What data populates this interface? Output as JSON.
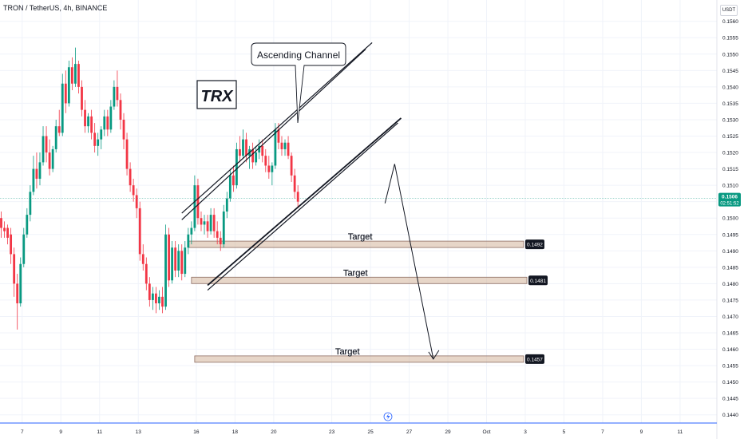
{
  "header": {
    "symbol_line": "TRON / TetherUS, 4h, BINANCE",
    "currency_button": "USDT"
  },
  "annotations": {
    "ticker_label": "TRX",
    "channel_callout": "Ascending Channel",
    "target_label": "Target"
  },
  "colors": {
    "up": "#089981",
    "down": "#f23645",
    "zone_fill": "#d4b49a",
    "zone_border": "#8d6e63",
    "axis_text": "#131722",
    "grid": "#f0f3fa",
    "current_price_line": "#089981",
    "time_axis_line": "#2962ff"
  },
  "chart_data": {
    "type": "candlestick",
    "symbol": "TRON / TetherUS",
    "timeframe": "4h",
    "exchange": "BINANCE",
    "currency": "USDT",
    "ylim": [
      0.14375,
      0.15665
    ],
    "y_ticks": [
      "0.1440",
      "0.1445",
      "0.1450",
      "0.1455",
      "0.1460",
      "0.1465",
      "0.1470",
      "0.1475",
      "0.1480",
      "0.1485",
      "0.1490",
      "0.1495",
      "0.1500",
      "0.1505",
      "0.1510",
      "0.1515",
      "0.1520",
      "0.1525",
      "0.1530",
      "0.1535",
      "0.1540",
      "0.1545",
      "0.1550",
      "0.1555",
      "0.1560"
    ],
    "x_ticks": [
      "7",
      "9",
      "11",
      "13",
      "16",
      "18",
      "20",
      "23",
      "25",
      "27",
      "29",
      "Oct",
      "3",
      "5",
      "7",
      "9",
      "11"
    ],
    "x_tick_bar_index": [
      6.5,
      18.5,
      30.5,
      42.5,
      60.5,
      72.5,
      84.5,
      102.5,
      114.5,
      126.5,
      138.5,
      150.5,
      162.5,
      174.5,
      186.5,
      198.5,
      210.5
    ],
    "current_price": {
      "value": 0.1506,
      "label": "0.1506",
      "countdown": "02:51:52"
    },
    "targets": [
      {
        "label": "Target",
        "value": 0.1492,
        "price_label": "0.1492",
        "bar_from": 58,
        "bar_to": 162
      },
      {
        "label": "Target",
        "value": 0.1481,
        "price_label": "0.1481",
        "bar_from": 59,
        "bar_to": 163
      },
      {
        "label": "Target",
        "value": 0.1457,
        "price_label": "0.1457",
        "bar_from": 60,
        "bar_to": 162
      }
    ],
    "channel": {
      "upper_outer": [
        [
          56,
          0.15015
        ],
        [
          115,
          0.15535
        ]
      ],
      "upper_inner": [
        [
          56,
          0.14995
        ],
        [
          113,
          0.15515
        ]
      ],
      "lower_outer": [
        [
          64,
          0.14795
        ],
        [
          124,
          0.15305
        ]
      ],
      "lower_inner": [
        [
          64,
          0.1478
        ],
        [
          123,
          0.1529
        ]
      ]
    },
    "projection": [
      [
        119,
        0.15045
      ],
      [
        122,
        0.15165
      ],
      [
        134,
        0.1457
      ],
      [
        135,
        0.1459
      ]
    ],
    "candles": [
      [
        0.15,
        0.1502,
        0.1494,
        0.1497
      ],
      [
        0.1497,
        0.1499,
        0.1494,
        0.1496
      ],
      [
        0.1497,
        0.1498,
        0.1492,
        0.1494
      ],
      [
        0.1495,
        0.1497,
        0.1486,
        0.1489
      ],
      [
        0.1489,
        0.1491,
        0.1476,
        0.148
      ],
      [
        0.148,
        0.1483,
        0.1466,
        0.1474
      ],
      [
        0.1474,
        0.1488,
        0.1473,
        0.1486
      ],
      [
        0.1486,
        0.1497,
        0.1485,
        0.1495
      ],
      [
        0.1495,
        0.1503,
        0.1494,
        0.1501
      ],
      [
        0.1501,
        0.151,
        0.1499,
        0.1508
      ],
      [
        0.1508,
        0.1519,
        0.1507,
        0.1515
      ],
      [
        0.1515,
        0.152,
        0.1509,
        0.1512
      ],
      [
        0.1512,
        0.152,
        0.151,
        0.1517
      ],
      [
        0.1517,
        0.1528,
        0.1516,
        0.1525
      ],
      [
        0.1525,
        0.1528,
        0.1517,
        0.152
      ],
      [
        0.152,
        0.1524,
        0.1513,
        0.1515
      ],
      [
        0.1515,
        0.1522,
        0.1514,
        0.1521
      ],
      [
        0.1521,
        0.153,
        0.152,
        0.1528
      ],
      [
        0.1528,
        0.1533,
        0.1525,
        0.1526
      ],
      [
        0.1526,
        0.1544,
        0.1525,
        0.1541
      ],
      [
        0.1541,
        0.1545,
        0.1532,
        0.1535
      ],
      [
        0.1535,
        0.1548,
        0.1534,
        0.1546
      ],
      [
        0.1546,
        0.1549,
        0.1539,
        0.1541
      ],
      [
        0.1541,
        0.1552,
        0.154,
        0.1547
      ],
      [
        0.1547,
        0.1548,
        0.1538,
        0.154
      ],
      [
        0.154,
        0.1542,
        0.1531,
        0.1533
      ],
      [
        0.1533,
        0.1536,
        0.1526,
        0.1528
      ],
      [
        0.1528,
        0.1532,
        0.1526,
        0.1531
      ],
      [
        0.1531,
        0.1533,
        0.1524,
        0.1526
      ],
      [
        0.1526,
        0.1529,
        0.152,
        0.1522
      ],
      [
        0.1522,
        0.1526,
        0.1519,
        0.1524
      ],
      [
        0.1524,
        0.1528,
        0.1521,
        0.1527
      ],
      [
        0.1527,
        0.1533,
        0.1525,
        0.1531
      ],
      [
        0.1531,
        0.1533,
        0.1525,
        0.1527
      ],
      [
        0.1527,
        0.1536,
        0.1526,
        0.1534
      ],
      [
        0.1534,
        0.1542,
        0.1533,
        0.154
      ],
      [
        0.154,
        0.1545,
        0.1534,
        0.1536
      ],
      [
        0.1536,
        0.1538,
        0.1527,
        0.153
      ],
      [
        0.153,
        0.1532,
        0.1521,
        0.1524
      ],
      [
        0.1524,
        0.1526,
        0.1513,
        0.1515
      ],
      [
        0.1515,
        0.1517,
        0.1508,
        0.151
      ],
      [
        0.151,
        0.1512,
        0.1505,
        0.1507
      ],
      [
        0.1507,
        0.1509,
        0.15,
        0.1503
      ],
      [
        0.1503,
        0.1505,
        0.1487,
        0.1489
      ],
      [
        0.1489,
        0.1492,
        0.1484,
        0.1486
      ],
      [
        0.1486,
        0.1488,
        0.1478,
        0.148
      ],
      [
        0.148,
        0.1482,
        0.1473,
        0.1475
      ],
      [
        0.1475,
        0.1479,
        0.1472,
        0.1477
      ],
      [
        0.1477,
        0.1479,
        0.1471,
        0.1474
      ],
      [
        0.1474,
        0.1478,
        0.1472,
        0.1476
      ],
      [
        0.1476,
        0.1479,
        0.1471,
        0.1473
      ],
      [
        0.1473,
        0.1498,
        0.1472,
        0.1495
      ],
      [
        0.1495,
        0.1497,
        0.1479,
        0.1481
      ],
      [
        0.1481,
        0.1493,
        0.148,
        0.1491
      ],
      [
        0.1491,
        0.1493,
        0.1482,
        0.1484
      ],
      [
        0.1484,
        0.1492,
        0.1482,
        0.149
      ],
      [
        0.149,
        0.1492,
        0.1481,
        0.1483
      ],
      [
        0.1483,
        0.1493,
        0.1482,
        0.1491
      ],
      [
        0.1491,
        0.1497,
        0.1489,
        0.1495
      ],
      [
        0.1495,
        0.1499,
        0.1492,
        0.1497
      ],
      [
        0.1497,
        0.1513,
        0.1496,
        0.151
      ],
      [
        0.151,
        0.1512,
        0.1498,
        0.15
      ],
      [
        0.15,
        0.1502,
        0.1496,
        0.1498
      ],
      [
        0.1498,
        0.1501,
        0.1495,
        0.1499
      ],
      [
        0.1499,
        0.1501,
        0.1494,
        0.1496
      ],
      [
        0.1496,
        0.1503,
        0.1495,
        0.1501
      ],
      [
        0.1501,
        0.1503,
        0.1494,
        0.1496
      ],
      [
        0.1496,
        0.1499,
        0.1492,
        0.1494
      ],
      [
        0.1494,
        0.1496,
        0.149,
        0.1492
      ],
      [
        0.1492,
        0.1504,
        0.1491,
        0.1502
      ],
      [
        0.1502,
        0.1508,
        0.15,
        0.1506
      ],
      [
        0.1506,
        0.1515,
        0.1505,
        0.1513
      ],
      [
        0.1513,
        0.1516,
        0.1508,
        0.151
      ],
      [
        0.151,
        0.1523,
        0.1509,
        0.1521
      ],
      [
        0.1521,
        0.1525,
        0.1517,
        0.1519
      ],
      [
        0.1519,
        0.1527,
        0.1518,
        0.1524
      ],
      [
        0.1524,
        0.1526,
        0.1517,
        0.1519
      ],
      [
        0.1519,
        0.1522,
        0.1515,
        0.1521
      ],
      [
        0.1521,
        0.1523,
        0.1515,
        0.1517
      ],
      [
        0.1517,
        0.1522,
        0.1516,
        0.152
      ],
      [
        0.152,
        0.1524,
        0.1518,
        0.1522
      ],
      [
        0.1522,
        0.1524,
        0.1517,
        0.1519
      ],
      [
        0.1519,
        0.1521,
        0.1514,
        0.1516
      ],
      [
        0.1516,
        0.1519,
        0.1512,
        0.1514
      ],
      [
        0.1514,
        0.1517,
        0.151,
        0.1516
      ],
      [
        0.1516,
        0.1529,
        0.1515,
        0.1527
      ],
      [
        0.1527,
        0.1529,
        0.1521,
        0.1523
      ],
      [
        0.1523,
        0.1525,
        0.1519,
        0.1521
      ],
      [
        0.1521,
        0.1524,
        0.1519,
        0.1523
      ],
      [
        0.1523,
        0.1525,
        0.1518,
        0.1519
      ],
      [
        0.1519,
        0.152,
        0.1511,
        0.1513
      ],
      [
        0.1513,
        0.1515,
        0.1506,
        0.1508
      ],
      [
        0.1508,
        0.151,
        0.1503,
        0.1505
      ]
    ]
  }
}
